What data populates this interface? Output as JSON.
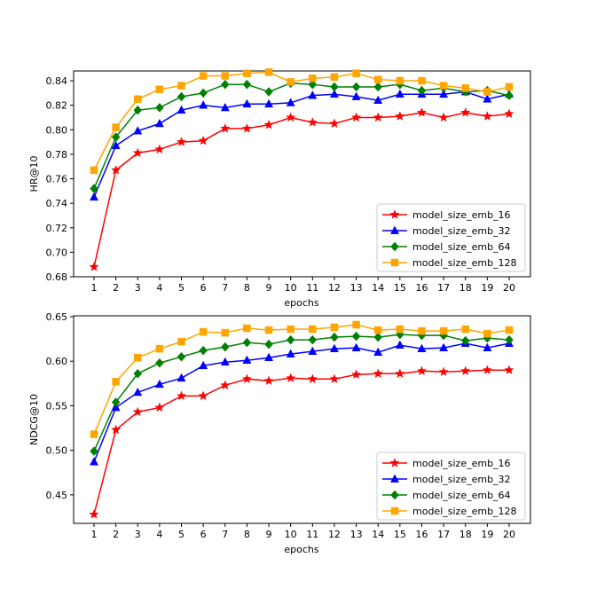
{
  "chart_data": [
    {
      "type": "line",
      "id": "hr",
      "xlabel": "epochs",
      "ylabel": "HR@10",
      "x": [
        1,
        2,
        3,
        4,
        5,
        6,
        7,
        8,
        9,
        10,
        11,
        12,
        13,
        14,
        15,
        16,
        17,
        18,
        19,
        20
      ],
      "ylim": [
        0.68,
        0.848
      ],
      "yticks": [
        0.68,
        0.7,
        0.72,
        0.74,
        0.76,
        0.78,
        0.8,
        0.82,
        0.84
      ],
      "ytick_labels": [
        "0.68",
        "0.70",
        "0.72",
        "0.74",
        "0.76",
        "0.78",
        "0.80",
        "0.82",
        "0.84"
      ],
      "legend_position": "lower-right",
      "series": [
        {
          "name": "model_size_emb_16",
          "color": "#ff0000",
          "marker": "star",
          "values": [
            0.688,
            0.767,
            0.781,
            0.784,
            0.79,
            0.791,
            0.801,
            0.801,
            0.804,
            0.81,
            0.806,
            0.805,
            0.81,
            0.81,
            0.811,
            0.814,
            0.81,
            0.814,
            0.811,
            0.813
          ]
        },
        {
          "name": "model_size_emb_32",
          "color": "#0000ff",
          "marker": "triangle",
          "values": [
            0.745,
            0.787,
            0.799,
            0.805,
            0.816,
            0.82,
            0.818,
            0.821,
            0.821,
            0.822,
            0.828,
            0.829,
            0.827,
            0.824,
            0.829,
            0.829,
            0.829,
            0.831,
            0.825,
            0.829
          ]
        },
        {
          "name": "model_size_emb_64",
          "color": "#008000",
          "marker": "diamond",
          "values": [
            0.752,
            0.794,
            0.816,
            0.818,
            0.827,
            0.83,
            0.837,
            0.837,
            0.831,
            0.838,
            0.837,
            0.835,
            0.835,
            0.835,
            0.837,
            0.832,
            0.834,
            0.831,
            0.832,
            0.828
          ]
        },
        {
          "name": "model_size_emb_128",
          "color": "#ffa500",
          "marker": "square",
          "values": [
            0.767,
            0.802,
            0.825,
            0.833,
            0.836,
            0.844,
            0.844,
            0.846,
            0.847,
            0.839,
            0.842,
            0.843,
            0.846,
            0.841,
            0.84,
            0.84,
            0.836,
            0.834,
            0.831,
            0.835
          ]
        }
      ]
    },
    {
      "type": "line",
      "id": "ndcg",
      "xlabel": "epochs",
      "ylabel": "NDCG@10",
      "x": [
        1,
        2,
        3,
        4,
        5,
        6,
        7,
        8,
        9,
        10,
        11,
        12,
        13,
        14,
        15,
        16,
        17,
        18,
        19,
        20
      ],
      "ylim": [
        0.418,
        0.651
      ],
      "yticks": [
        0.45,
        0.5,
        0.55,
        0.6,
        0.65
      ],
      "ytick_labels": [
        "0.45",
        "0.50",
        "0.55",
        "0.60",
        "0.65"
      ],
      "legend_position": "lower-right",
      "series": [
        {
          "name": "model_size_emb_16",
          "color": "#ff0000",
          "marker": "star",
          "values": [
            0.428,
            0.523,
            0.543,
            0.548,
            0.561,
            0.561,
            0.573,
            0.58,
            0.578,
            0.581,
            0.58,
            0.58,
            0.585,
            0.586,
            0.586,
            0.589,
            0.588,
            0.589,
            0.59,
            0.59
          ]
        },
        {
          "name": "model_size_emb_32",
          "color": "#0000ff",
          "marker": "triangle",
          "values": [
            0.487,
            0.548,
            0.565,
            0.574,
            0.581,
            0.595,
            0.599,
            0.601,
            0.604,
            0.608,
            0.611,
            0.614,
            0.615,
            0.61,
            0.618,
            0.614,
            0.615,
            0.62,
            0.615,
            0.62
          ]
        },
        {
          "name": "model_size_emb_64",
          "color": "#008000",
          "marker": "diamond",
          "values": [
            0.499,
            0.554,
            0.586,
            0.598,
            0.605,
            0.612,
            0.616,
            0.621,
            0.619,
            0.624,
            0.624,
            0.627,
            0.628,
            0.627,
            0.63,
            0.629,
            0.629,
            0.623,
            0.626,
            0.624
          ]
        },
        {
          "name": "model_size_emb_128",
          "color": "#ffa500",
          "marker": "square",
          "values": [
            0.518,
            0.577,
            0.604,
            0.614,
            0.622,
            0.633,
            0.632,
            0.637,
            0.635,
            0.636,
            0.636,
            0.638,
            0.641,
            0.635,
            0.636,
            0.634,
            0.634,
            0.636,
            0.631,
            0.635
          ]
        }
      ]
    }
  ]
}
